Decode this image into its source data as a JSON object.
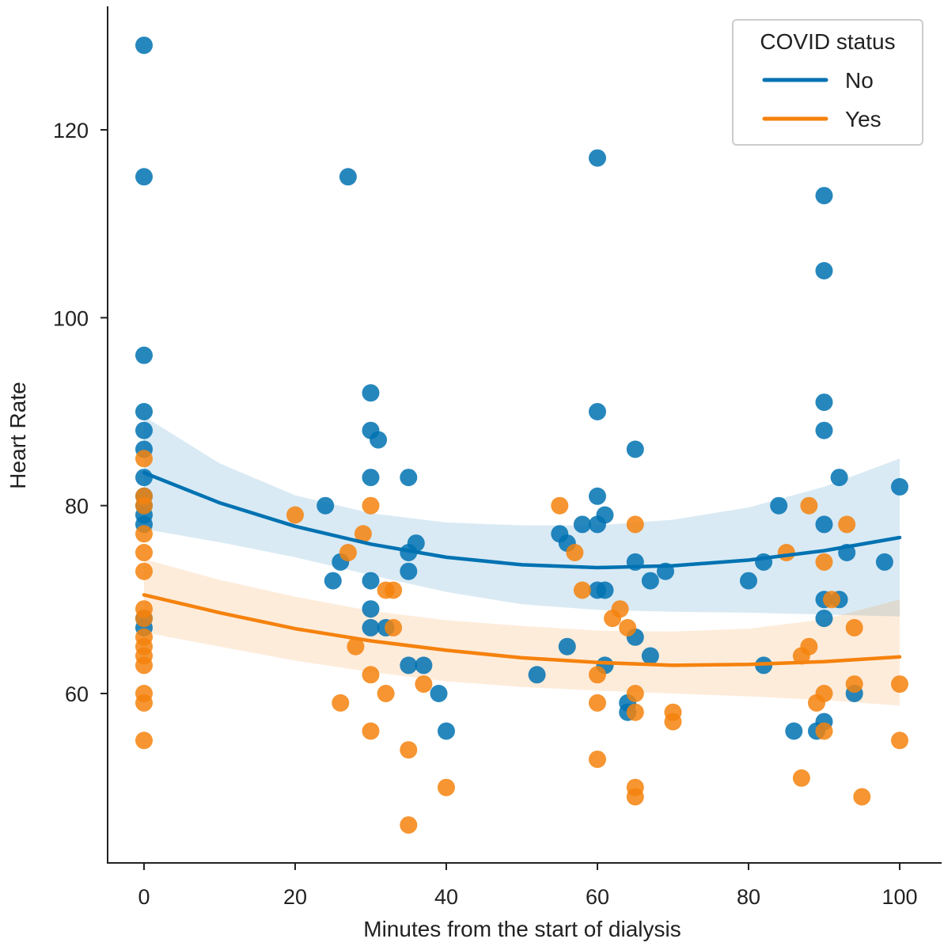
{
  "chart_data": {
    "type": "scatter",
    "xlabel": "Minutes from the start of dialysis",
    "ylabel": "Heart Rate",
    "xlim": [
      -5,
      105
    ],
    "ylim": [
      43,
      134
    ],
    "x_ticks": [
      0,
      20,
      40,
      60,
      80,
      100
    ],
    "y_ticks": [
      60,
      80,
      100,
      120
    ],
    "grid": false,
    "legend": {
      "title": "COVID status",
      "placement": "top-right",
      "entries": [
        "No",
        "Yes"
      ]
    },
    "series": [
      {
        "name": "No",
        "color": "#0072B2",
        "points": [
          [
            0,
            129
          ],
          [
            0,
            115
          ],
          [
            0,
            96
          ],
          [
            0,
            90
          ],
          [
            0,
            88
          ],
          [
            0,
            86
          ],
          [
            0,
            83
          ],
          [
            0,
            81
          ],
          [
            0,
            80
          ],
          [
            0,
            79
          ],
          [
            0,
            78
          ],
          [
            0,
            68
          ],
          [
            0,
            67
          ],
          [
            24,
            80
          ],
          [
            25,
            72
          ],
          [
            26,
            74
          ],
          [
            27,
            115
          ],
          [
            30,
            92
          ],
          [
            30,
            88
          ],
          [
            30,
            83
          ],
          [
            30,
            72
          ],
          [
            30,
            69
          ],
          [
            30,
            67
          ],
          [
            31,
            87
          ],
          [
            32,
            67
          ],
          [
            35,
            83
          ],
          [
            35,
            75
          ],
          [
            35,
            73
          ],
          [
            35,
            63
          ],
          [
            36,
            76
          ],
          [
            37,
            63
          ],
          [
            39,
            60
          ],
          [
            40,
            56
          ],
          [
            52,
            62
          ],
          [
            55,
            77
          ],
          [
            56,
            76
          ],
          [
            56,
            65
          ],
          [
            58,
            78
          ],
          [
            60,
            117
          ],
          [
            60,
            90
          ],
          [
            60,
            81
          ],
          [
            60,
            78
          ],
          [
            60,
            71
          ],
          [
            61,
            79
          ],
          [
            61,
            71
          ],
          [
            61,
            63
          ],
          [
            64,
            59
          ],
          [
            64,
            58
          ],
          [
            65,
            86
          ],
          [
            65,
            74
          ],
          [
            65,
            66
          ],
          [
            67,
            72
          ],
          [
            67,
            64
          ],
          [
            69,
            73
          ],
          [
            80,
            72
          ],
          [
            82,
            74
          ],
          [
            82,
            63
          ],
          [
            84,
            80
          ],
          [
            86,
            56
          ],
          [
            89,
            56
          ],
          [
            90,
            113
          ],
          [
            90,
            105
          ],
          [
            90,
            91
          ],
          [
            90,
            88
          ],
          [
            90,
            78
          ],
          [
            90,
            70
          ],
          [
            90,
            68
          ],
          [
            90,
            57
          ],
          [
            92,
            83
          ],
          [
            92,
            70
          ],
          [
            93,
            75
          ],
          [
            94,
            60
          ],
          [
            98,
            74
          ],
          [
            100,
            82
          ]
        ],
        "fit": {
          "x": [
            0,
            10,
            20,
            30,
            40,
            50,
            60,
            70,
            80,
            90,
            100
          ],
          "y": [
            83.5,
            80.3,
            77.8,
            75.9,
            74.5,
            73.7,
            73.4,
            73.6,
            74.2,
            75.2,
            76.6
          ],
          "ci_lower": [
            77.5,
            76.1,
            74.5,
            72.6,
            70.8,
            69.5,
            68.9,
            68.7,
            68.6,
            68.4,
            68.2
          ],
          "ci_upper": [
            89.5,
            84.5,
            81.1,
            79.2,
            78.2,
            77.9,
            77.9,
            78.5,
            79.8,
            82.0,
            85.0
          ]
        }
      },
      {
        "name": "Yes",
        "color": "#F5820D",
        "points": [
          [
            0,
            85
          ],
          [
            0,
            81
          ],
          [
            0,
            80
          ],
          [
            0,
            77
          ],
          [
            0,
            75
          ],
          [
            0,
            73
          ],
          [
            0,
            69
          ],
          [
            0,
            68
          ],
          [
            0,
            66
          ],
          [
            0,
            65
          ],
          [
            0,
            64
          ],
          [
            0,
            63
          ],
          [
            0,
            60
          ],
          [
            0,
            59
          ],
          [
            0,
            55
          ],
          [
            20,
            79
          ],
          [
            26,
            59
          ],
          [
            27,
            75
          ],
          [
            28,
            65
          ],
          [
            29,
            77
          ],
          [
            30,
            80
          ],
          [
            30,
            62
          ],
          [
            30,
            56
          ],
          [
            32,
            71
          ],
          [
            32,
            60
          ],
          [
            33,
            71
          ],
          [
            33,
            67
          ],
          [
            35,
            54
          ],
          [
            35,
            46
          ],
          [
            37,
            61
          ],
          [
            40,
            50
          ],
          [
            55,
            80
          ],
          [
            57,
            75
          ],
          [
            58,
            71
          ],
          [
            60,
            62
          ],
          [
            60,
            59
          ],
          [
            60,
            53
          ],
          [
            62,
            68
          ],
          [
            63,
            69
          ],
          [
            64,
            67
          ],
          [
            65,
            78
          ],
          [
            65,
            60
          ],
          [
            65,
            58
          ],
          [
            65,
            50
          ],
          [
            65,
            49
          ],
          [
            70,
            58
          ],
          [
            70,
            57
          ],
          [
            85,
            75
          ],
          [
            87,
            64
          ],
          [
            87,
            51
          ],
          [
            88,
            80
          ],
          [
            88,
            65
          ],
          [
            89,
            59
          ],
          [
            90,
            74
          ],
          [
            90,
            60
          ],
          [
            90,
            56
          ],
          [
            91,
            70
          ],
          [
            93,
            78
          ],
          [
            94,
            67
          ],
          [
            94,
            61
          ],
          [
            95,
            49
          ],
          [
            100,
            61
          ],
          [
            100,
            55
          ]
        ],
        "fit": {
          "x": [
            0,
            10,
            20,
            30,
            40,
            50,
            60,
            70,
            80,
            90,
            100
          ],
          "y": [
            70.5,
            68.6,
            66.9,
            65.6,
            64.6,
            63.8,
            63.3,
            63.0,
            63.1,
            63.4,
            63.9
          ],
          "ci_lower": [
            66.5,
            65.0,
            63.5,
            62.3,
            61.3,
            60.7,
            60.3,
            60.0,
            59.7,
            59.3,
            58.7
          ],
          "ci_upper": [
            74.3,
            72.1,
            70.3,
            68.8,
            67.8,
            67.2,
            66.7,
            66.6,
            66.9,
            67.9,
            70.0
          ]
        }
      }
    ]
  }
}
